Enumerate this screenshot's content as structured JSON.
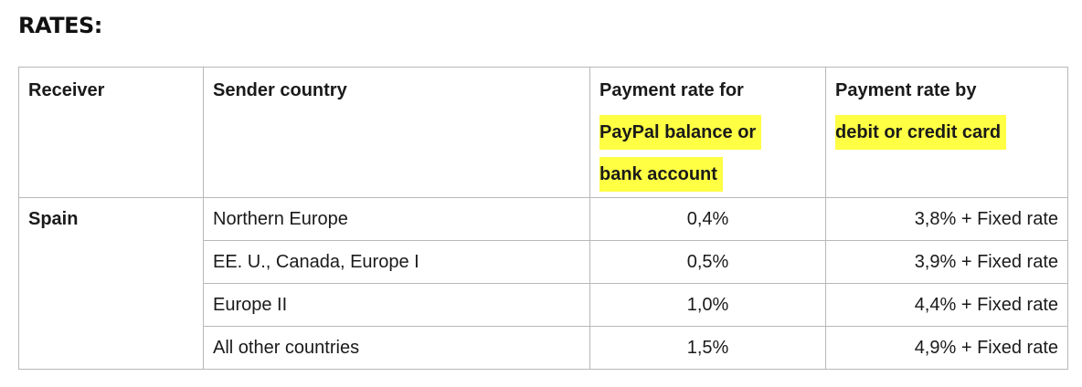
{
  "heading": "RATES:",
  "table": {
    "headers": {
      "receiver": "Receiver",
      "sender_country": "Sender country",
      "paypal_rate": {
        "plain": "Payment rate for",
        "highlighted_1": "PayPal balance or",
        "highlighted_2": "bank account"
      },
      "card_rate": {
        "plain": "Payment rate by",
        "highlighted": "debit or credit card"
      }
    },
    "receiver": "Spain",
    "rows": [
      {
        "sender_country": "Northern Europe",
        "paypal_rate": "0,4%",
        "card_rate": "3,8% + Fixed rate"
      },
      {
        "sender_country": "EE. U., Canada, Europe I",
        "paypal_rate": "0,5%",
        "card_rate": "3,9% + Fixed rate"
      },
      {
        "sender_country": "Europe II",
        "paypal_rate": "1,0%",
        "card_rate": "4,4% + Fixed rate"
      },
      {
        "sender_country": "All other countries",
        "paypal_rate": "1,5%",
        "card_rate": "4,9% + Fixed rate"
      }
    ]
  },
  "colors": {
    "highlight": "#ffff44",
    "border": "#b8b8b8"
  }
}
